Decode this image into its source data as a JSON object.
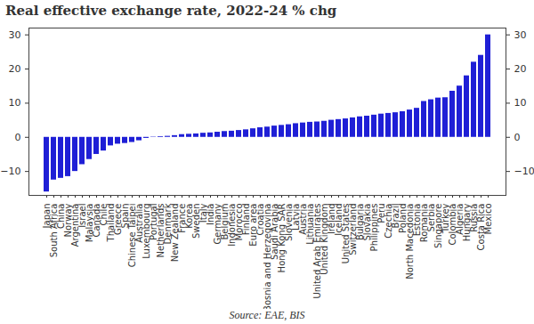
{
  "chart_data": {
    "type": "bar",
    "title": "Real effective exchange rate, 2022-24 % chg",
    "source": "Source: EAE, BIS",
    "categories": [
      "Japan",
      "South Africa",
      "China",
      "Norway",
      "Argentina",
      "Israel",
      "Malaysia",
      "Canada",
      "Chile",
      "Thailand",
      "Greece",
      "Spain",
      "Chinese Taipei",
      "Australia",
      "Luxembourg",
      "Portugal",
      "Netherlands",
      "Denmark",
      "New Zealand",
      "France",
      "Korea",
      "Sweden",
      "Italy",
      "India",
      "Germany",
      "Belgium",
      "Indonesia",
      "Morocco",
      "Finland",
      "Euro area",
      "Croatia",
      "Bosnia and Herzegovina",
      "Saudi Arabia",
      "Hong Kong SAR",
      "Slovenia",
      "Latvia",
      "Austria",
      "Lithuania",
      "United Arab Emirates",
      "United Kingdom",
      "Ireland",
      "Iceland",
      "United States",
      "Switzerland",
      "Bulgaria",
      "Slovakia",
      "Philippines",
      "Peru",
      "Czechia",
      "Brazil",
      "Poland",
      "North Macedonia",
      "Estonia",
      "Romania",
      "Serbia",
      "Singapore",
      "Turkey",
      "Colombia",
      "Algeria",
      "Hungary",
      "Russia",
      "Costa Rica",
      "Mexico"
    ],
    "values": [
      -16,
      -12.5,
      -12,
      -11.5,
      -10,
      -8,
      -6.5,
      -5,
      -4,
      -2.5,
      -2,
      -1.8,
      -1.5,
      -1,
      -0.3,
      0.1,
      0.2,
      0.3,
      0.5,
      0.8,
      0.9,
      1,
      1.2,
      1.3,
      1.5,
      1.7,
      1.8,
      2,
      2.2,
      2.5,
      2.8,
      3,
      3.3,
      3.5,
      3.7,
      4,
      4.2,
      4.4,
      4.5,
      4.7,
      5,
      5.2,
      5.4,
      5.7,
      6,
      6.2,
      6.5,
      6.8,
      7,
      7.2,
      7.5,
      8,
      8.5,
      10.5,
      11,
      11.5,
      11.6,
      13.5,
      15,
      18,
      22,
      24,
      30
    ],
    "color": "#1f1fd6",
    "ylim": [
      -17,
      32
    ],
    "yticks": [
      -10,
      0,
      10,
      20,
      30
    ],
    "grid": false
  }
}
